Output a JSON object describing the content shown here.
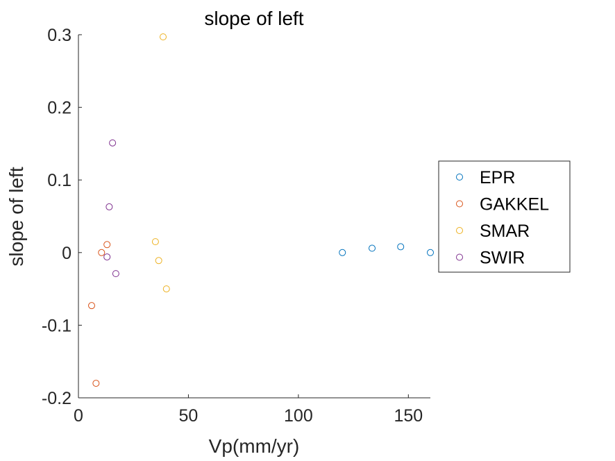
{
  "chart_data": {
    "type": "scatter",
    "title": "slope of left",
    "xlabel": "Vp(mm/yr)",
    "ylabel": "slope of left",
    "xlim": [
      0,
      160
    ],
    "ylim": [
      -0.2,
      0.3
    ],
    "xticks": [
      0,
      50,
      100,
      150
    ],
    "xtick_labels": [
      "0",
      "50",
      "100",
      "150"
    ],
    "yticks": [
      -0.2,
      -0.1,
      0,
      0.1,
      0.2,
      0.3
    ],
    "ytick_labels": [
      "-0.2",
      "-0.1",
      "0",
      "0.1",
      "0.2",
      "0.3"
    ],
    "grid": false,
    "legend": "outside-right",
    "marker": "open-circle",
    "series": [
      {
        "name": "EPR",
        "color": "#0072BD",
        "points": [
          [
            120,
            0.0
          ],
          [
            133.5,
            0.006
          ],
          [
            146.5,
            0.008
          ],
          [
            160,
            0.0
          ]
        ]
      },
      {
        "name": "GAKKEL",
        "color": "#D95319",
        "points": [
          [
            6,
            -0.073
          ],
          [
            8,
            -0.18
          ],
          [
            10.5,
            0.0
          ],
          [
            13,
            0.011
          ]
        ]
      },
      {
        "name": "SMAR",
        "color": "#EDB120",
        "points": [
          [
            38.5,
            0.297
          ],
          [
            35,
            0.015
          ],
          [
            36.5,
            -0.011
          ],
          [
            40,
            -0.05
          ]
        ]
      },
      {
        "name": "SWIR",
        "color": "#7E2F8E",
        "points": [
          [
            15.5,
            0.151
          ],
          [
            14,
            0.063
          ],
          [
            13,
            -0.006
          ],
          [
            17,
            -0.029
          ]
        ]
      }
    ]
  }
}
